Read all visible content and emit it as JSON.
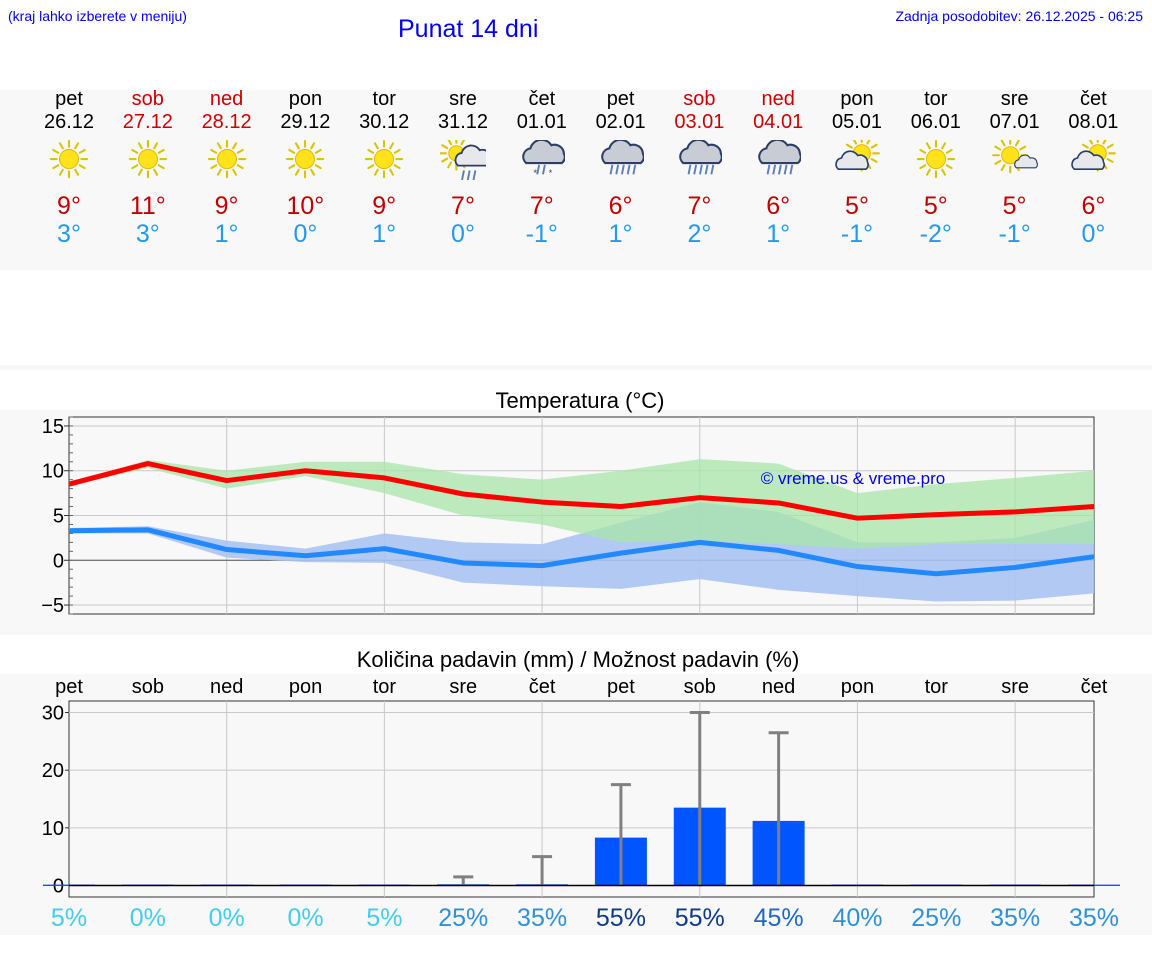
{
  "header": {
    "hint": "(kraj lahko izberete v meniju)",
    "title": "Punat 14 dni",
    "updated": "Zadnja posodobitev: 26.12.2025 - 06:25"
  },
  "days": [
    {
      "name": "pet",
      "date": "26.12",
      "weekend": false,
      "icon": "sun-icon",
      "tmax": "9°",
      "tmin": "3°"
    },
    {
      "name": "sob",
      "date": "27.12",
      "weekend": true,
      "icon": "sun-icon",
      "tmax": "11°",
      "tmin": "3°"
    },
    {
      "name": "ned",
      "date": "28.12",
      "weekend": true,
      "icon": "sun-icon",
      "tmax": "9°",
      "tmin": "1°"
    },
    {
      "name": "pon",
      "date": "29.12",
      "weekend": false,
      "icon": "sun-icon",
      "tmax": "10°",
      "tmin": "0°"
    },
    {
      "name": "tor",
      "date": "30.12",
      "weekend": false,
      "icon": "sun-icon",
      "tmax": "9°",
      "tmin": "1°"
    },
    {
      "name": "sre",
      "date": "31.12",
      "weekend": false,
      "icon": "sun-cloud-rain-icon",
      "tmax": "7°",
      "tmin": "0°"
    },
    {
      "name": "čet",
      "date": "01.01",
      "weekend": false,
      "icon": "cloud-sleet-icon",
      "tmax": "7°",
      "tmin": "-1°"
    },
    {
      "name": "pet",
      "date": "02.01",
      "weekend": false,
      "icon": "cloud-rain-icon",
      "tmax": "6°",
      "tmin": "1°"
    },
    {
      "name": "sob",
      "date": "03.01",
      "weekend": true,
      "icon": "cloud-rain-icon",
      "tmax": "7°",
      "tmin": "2°"
    },
    {
      "name": "ned",
      "date": "04.01",
      "weekend": true,
      "icon": "cloud-rain-icon",
      "tmax": "6°",
      "tmin": "1°"
    },
    {
      "name": "pon",
      "date": "05.01",
      "weekend": false,
      "icon": "sun-cloud-icon",
      "tmax": "5°",
      "tmin": "-1°"
    },
    {
      "name": "tor",
      "date": "06.01",
      "weekend": false,
      "icon": "sun-icon",
      "tmax": "5°",
      "tmin": "-2°"
    },
    {
      "name": "sre",
      "date": "07.01",
      "weekend": false,
      "icon": "sun-small-cloud-icon",
      "tmax": "5°",
      "tmin": "-1°"
    },
    {
      "name": "čet",
      "date": "08.01",
      "weekend": false,
      "icon": "sun-cloud-icon",
      "tmax": "6°",
      "tmin": "0°"
    }
  ],
  "colors": {
    "max_line": "#ff0000",
    "min_line": "#2288ff",
    "max_band": "#a8e6a8",
    "min_band": "#aac4f2",
    "overlap_band": "#88c8a8",
    "bar": "#0055ff",
    "whisker": "#808080",
    "text_blue": "#0000ee",
    "weekend": "#cc0000",
    "tmin_text": "#2299ee"
  },
  "chart_data": [
    {
      "type": "line",
      "title": "Temperatura (°C)",
      "watermark": "© vreme.us & vreme.pro",
      "ylim": [
        -6,
        16
      ],
      "yticks": [
        15,
        10,
        5,
        0,
        -5
      ],
      "ytick_labels": [
        "15",
        "10",
        "5",
        "0",
        "−5"
      ],
      "series": [
        {
          "name": "max",
          "values": [
            8.5,
            10.8,
            8.9,
            10.0,
            9.2,
            7.4,
            6.5,
            6.0,
            7.0,
            6.4,
            4.7,
            5.1,
            5.4,
            6.0
          ]
        },
        {
          "name": "max_low",
          "values": [
            8.3,
            10.3,
            8.0,
            9.4,
            7.5,
            5.0,
            4.0,
            2.0,
            2.2,
            1.8,
            1.3,
            1.8,
            1.8,
            1.8
          ]
        },
        {
          "name": "max_high",
          "values": [
            8.7,
            11.2,
            10.0,
            11.0,
            11.0,
            9.6,
            9.0,
            10.0,
            11.3,
            10.8,
            7.5,
            8.5,
            9.2,
            10.0
          ]
        },
        {
          "name": "min",
          "values": [
            3.3,
            3.4,
            1.2,
            0.5,
            1.3,
            -0.3,
            -0.6,
            0.8,
            2.0,
            1.1,
            -0.7,
            -1.5,
            -0.8,
            0.4
          ]
        },
        {
          "name": "min_low",
          "values": [
            3.0,
            3.0,
            0.3,
            -0.2,
            -0.3,
            -2.5,
            -2.9,
            -3.2,
            -2.1,
            -3.3,
            -4.0,
            -4.6,
            -4.5,
            -3.7
          ]
        },
        {
          "name": "min_high",
          "values": [
            3.6,
            3.8,
            2.2,
            1.3,
            3.0,
            2.0,
            1.8,
            4.2,
            6.5,
            5.4,
            2.0,
            2.0,
            2.5,
            4.5
          ]
        }
      ]
    },
    {
      "type": "bar",
      "title": "Količina padavin (mm) / Možnost padavin (%)",
      "categories": [
        "pet",
        "sob",
        "ned",
        "pon",
        "tor",
        "sre",
        "čet",
        "pet",
        "sob",
        "ned",
        "pon",
        "tor",
        "sre",
        "čet"
      ],
      "ylim": [
        -2,
        32
      ],
      "yticks": [
        30,
        20,
        10,
        0
      ],
      "ytick_labels": [
        "30",
        "20",
        "10",
        "0"
      ],
      "values": [
        0,
        0,
        0,
        0,
        0,
        0.2,
        0.2,
        8.3,
        13.5,
        11.2,
        0,
        0,
        0,
        0
      ],
      "error_high": [
        0,
        0,
        0,
        0,
        0,
        1.5,
        5.0,
        17.5,
        30.0,
        26.5,
        0,
        0,
        0,
        0
      ],
      "probabilities": [
        "5%",
        "0%",
        "0%",
        "0%",
        "5%",
        "25%",
        "35%",
        "55%",
        "55%",
        "45%",
        "40%",
        "25%",
        "35%",
        "35%"
      ]
    }
  ]
}
